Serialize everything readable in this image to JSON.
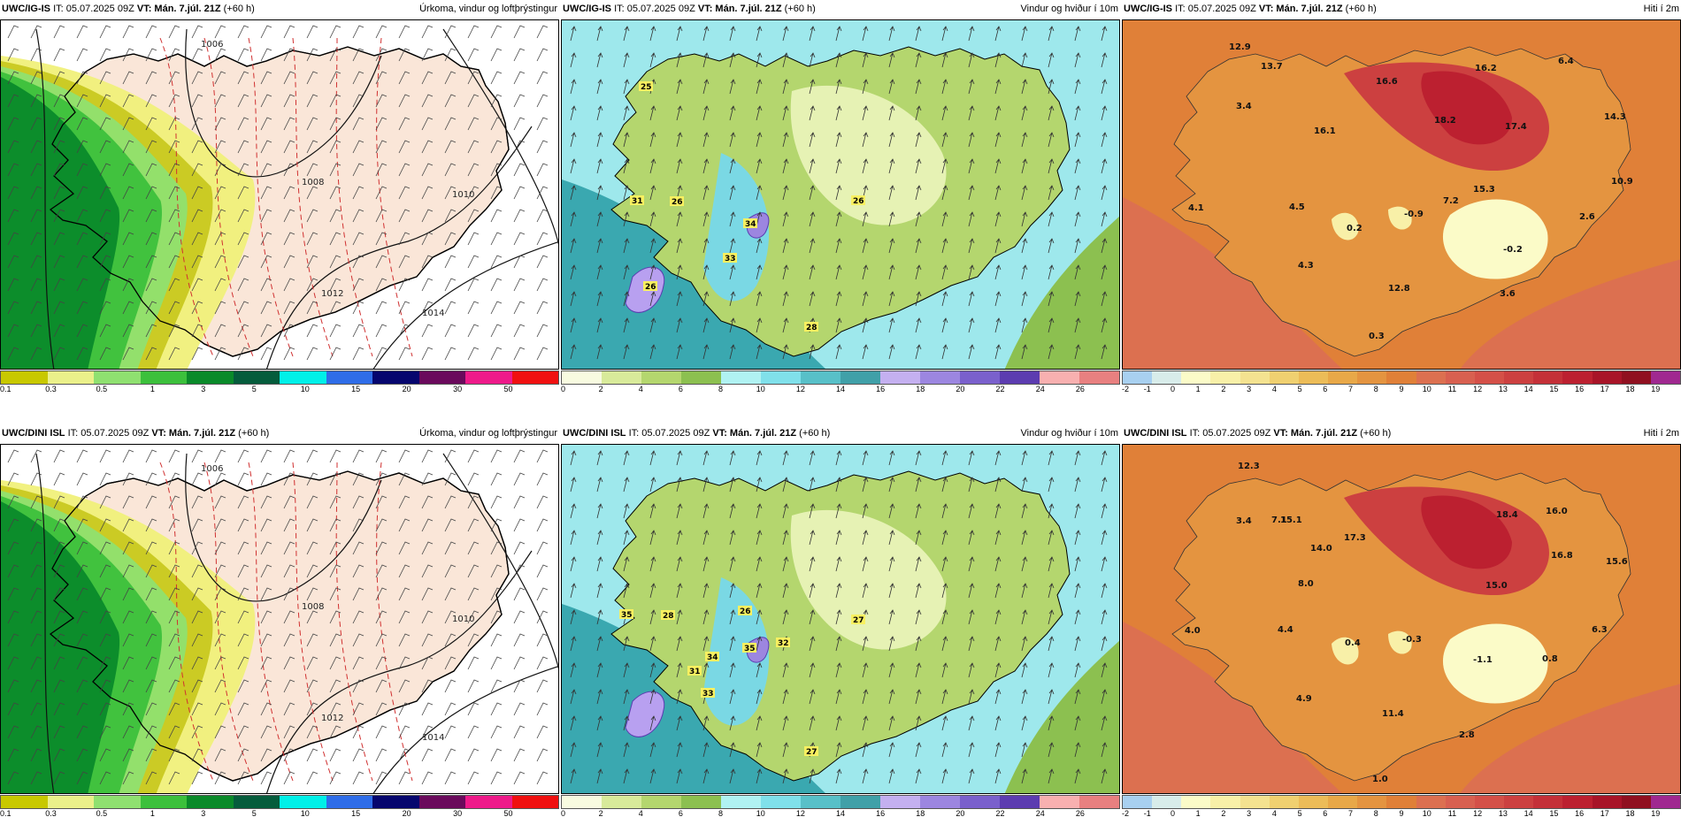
{
  "panels": [
    {
      "model": "UWC/IG-IS",
      "it": "IT: 05.07.2025 09Z",
      "vt": "VT: Mán. 7.júl. 21Z",
      "lead": "(+60 h)",
      "type": "precip",
      "title": "Úrkoma, vindur og loftþrýstingur",
      "colorbar": {
        "colors": [
          "#c8c800",
          "#eaf08a",
          "#8fe070",
          "#3cc03c",
          "#0a8a2a",
          "#055c3c",
          "#00f0e8",
          "#2f6de8",
          "#06066e",
          "#6a0a5c",
          "#ee1a8a",
          "#f01010"
        ],
        "labels": [
          "0.1",
          "0.3",
          "0.5",
          "1",
          "3",
          "5",
          "10",
          "15",
          "20",
          "30",
          "50"
        ]
      },
      "isobars": [
        "1006",
        "1008",
        "1010",
        "1012",
        "1014"
      ]
    },
    {
      "model": "UWC/IG-IS",
      "it": "IT: 05.07.2025 09Z",
      "vt": "VT: Mán. 7.júl. 21Z",
      "lead": "(+60 h)",
      "type": "wind",
      "title": "Vindur og hviður í 10m",
      "colorbar": {
        "colors": [
          "#f8fbe0",
          "#d8ea9a",
          "#b4d66e",
          "#8cc050",
          "#b0f2f2",
          "#80e0ea",
          "#58c0c8",
          "#40a0a8",
          "#c4b0f0",
          "#9c86e0",
          "#7a60cc",
          "#5c3cb0",
          "#f8b0b0",
          "#e88080"
        ],
        "labels": [
          "0",
          "2",
          "4",
          "6",
          "8",
          "10",
          "12",
          "14",
          "16",
          "18",
          "20",
          "22",
          "24",
          "26"
        ]
      },
      "gust_labels": [
        "25",
        "31",
        "26",
        "26",
        "34",
        "33",
        "26",
        "28"
      ]
    },
    {
      "model": "UWC/IG-IS",
      "it": "IT: 05.07.2025 09Z",
      "vt": "VT: Mán. 7.júl. 21Z",
      "lead": "(+60 h)",
      "type": "temp",
      "title": "Hiti í 2m",
      "colorbar": {
        "colors": [
          "#a8d0f0",
          "#d8ecea",
          "#fbfbc8",
          "#f8f0a8",
          "#f4e290",
          "#f0d070",
          "#ecbc58",
          "#e8a848",
          "#e49440",
          "#e08038",
          "#dc7050",
          "#d86050",
          "#d45048",
          "#cc4040",
          "#c43038",
          "#bc2030",
          "#a81428",
          "#901020",
          "#a02890"
        ],
        "labels": [
          "-2",
          "-1",
          "0",
          "1",
          "2",
          "3",
          "4",
          "5",
          "6",
          "7",
          "8",
          "9",
          "10",
          "11",
          "12",
          "13",
          "14",
          "15",
          "16",
          "17",
          "18",
          "19"
        ]
      },
      "temp_labels": [
        "12.9",
        "13.7",
        "16.2",
        "6.4",
        "3.4",
        "16.6",
        "18.2",
        "14.3",
        "16.1",
        "17.4",
        "10.9",
        "15.3",
        "4.1",
        "4.5",
        "7.2",
        "2.6",
        "0.2",
        "-0.9",
        "-0.2",
        "4.3",
        "12.8",
        "3.6",
        "0.3"
      ]
    },
    {
      "model": "UWC/DINI ISL",
      "it": "IT: 05.07.2025 09Z",
      "vt": "VT: Mán. 7.júl. 21Z",
      "lead": "(+60 h)",
      "type": "precip",
      "title": "Úrkoma, vindur og loftþrýstingur",
      "colorbar": {
        "colors": [
          "#c8c800",
          "#eaf08a",
          "#8fe070",
          "#3cc03c",
          "#0a8a2a",
          "#055c3c",
          "#00f0e8",
          "#2f6de8",
          "#06066e",
          "#6a0a5c",
          "#ee1a8a",
          "#f01010"
        ],
        "labels": [
          "0.1",
          "0.3",
          "0.5",
          "1",
          "3",
          "5",
          "10",
          "15",
          "20",
          "30",
          "50"
        ]
      },
      "isobars": [
        "1006",
        "1008",
        "1010",
        "1012",
        "1014"
      ]
    },
    {
      "model": "UWC/DINI ISL",
      "it": "IT: 05.07.2025 09Z",
      "vt": "VT: Mán. 7.júl. 21Z",
      "lead": "(+60 h)",
      "type": "wind",
      "title": "Vindur og hviður í 10m",
      "colorbar": {
        "colors": [
          "#f8fbe0",
          "#d8ea9a",
          "#b4d66e",
          "#8cc050",
          "#b0f2f2",
          "#80e0ea",
          "#58c0c8",
          "#40a0a8",
          "#c4b0f0",
          "#9c86e0",
          "#7a60cc",
          "#5c3cb0",
          "#f8b0b0",
          "#e88080"
        ],
        "labels": [
          "0",
          "2",
          "4",
          "6",
          "8",
          "10",
          "12",
          "14",
          "16",
          "18",
          "20",
          "22",
          "24",
          "26"
        ]
      },
      "gust_labels": [
        "35",
        "28",
        "26",
        "27",
        "35",
        "32",
        "34",
        "31",
        "33",
        "27"
      ]
    },
    {
      "model": "UWC/DINI ISL",
      "it": "IT: 05.07.2025 09Z",
      "vt": "VT: Mán. 7.júl. 21Z",
      "lead": "(+60 h)",
      "type": "temp",
      "title": "Hiti í 2m",
      "colorbar": {
        "colors": [
          "#a8d0f0",
          "#d8ecea",
          "#fbfbc8",
          "#f8f0a8",
          "#f4e290",
          "#f0d070",
          "#ecbc58",
          "#e8a848",
          "#e49440",
          "#e08038",
          "#dc7050",
          "#d86050",
          "#d45048",
          "#cc4040",
          "#c43038",
          "#bc2030",
          "#a81428",
          "#901020",
          "#a02890"
        ],
        "labels": [
          "-2",
          "-1",
          "0",
          "1",
          "2",
          "3",
          "4",
          "5",
          "6",
          "7",
          "8",
          "9",
          "10",
          "11",
          "12",
          "13",
          "14",
          "15",
          "16",
          "17",
          "18",
          "19"
        ]
      },
      "temp_labels": [
        "12.3",
        "3.4",
        "7.1",
        "18.4",
        "16.0",
        "15.1",
        "17.3",
        "14.0",
        "16.8",
        "15.6",
        "8.0",
        "15.0",
        "4.0",
        "4.4",
        "0.4",
        "-0.3",
        "-1.1",
        "0.8",
        "6.3",
        "4.9",
        "11.4",
        "2.8",
        "1.0"
      ]
    }
  ]
}
